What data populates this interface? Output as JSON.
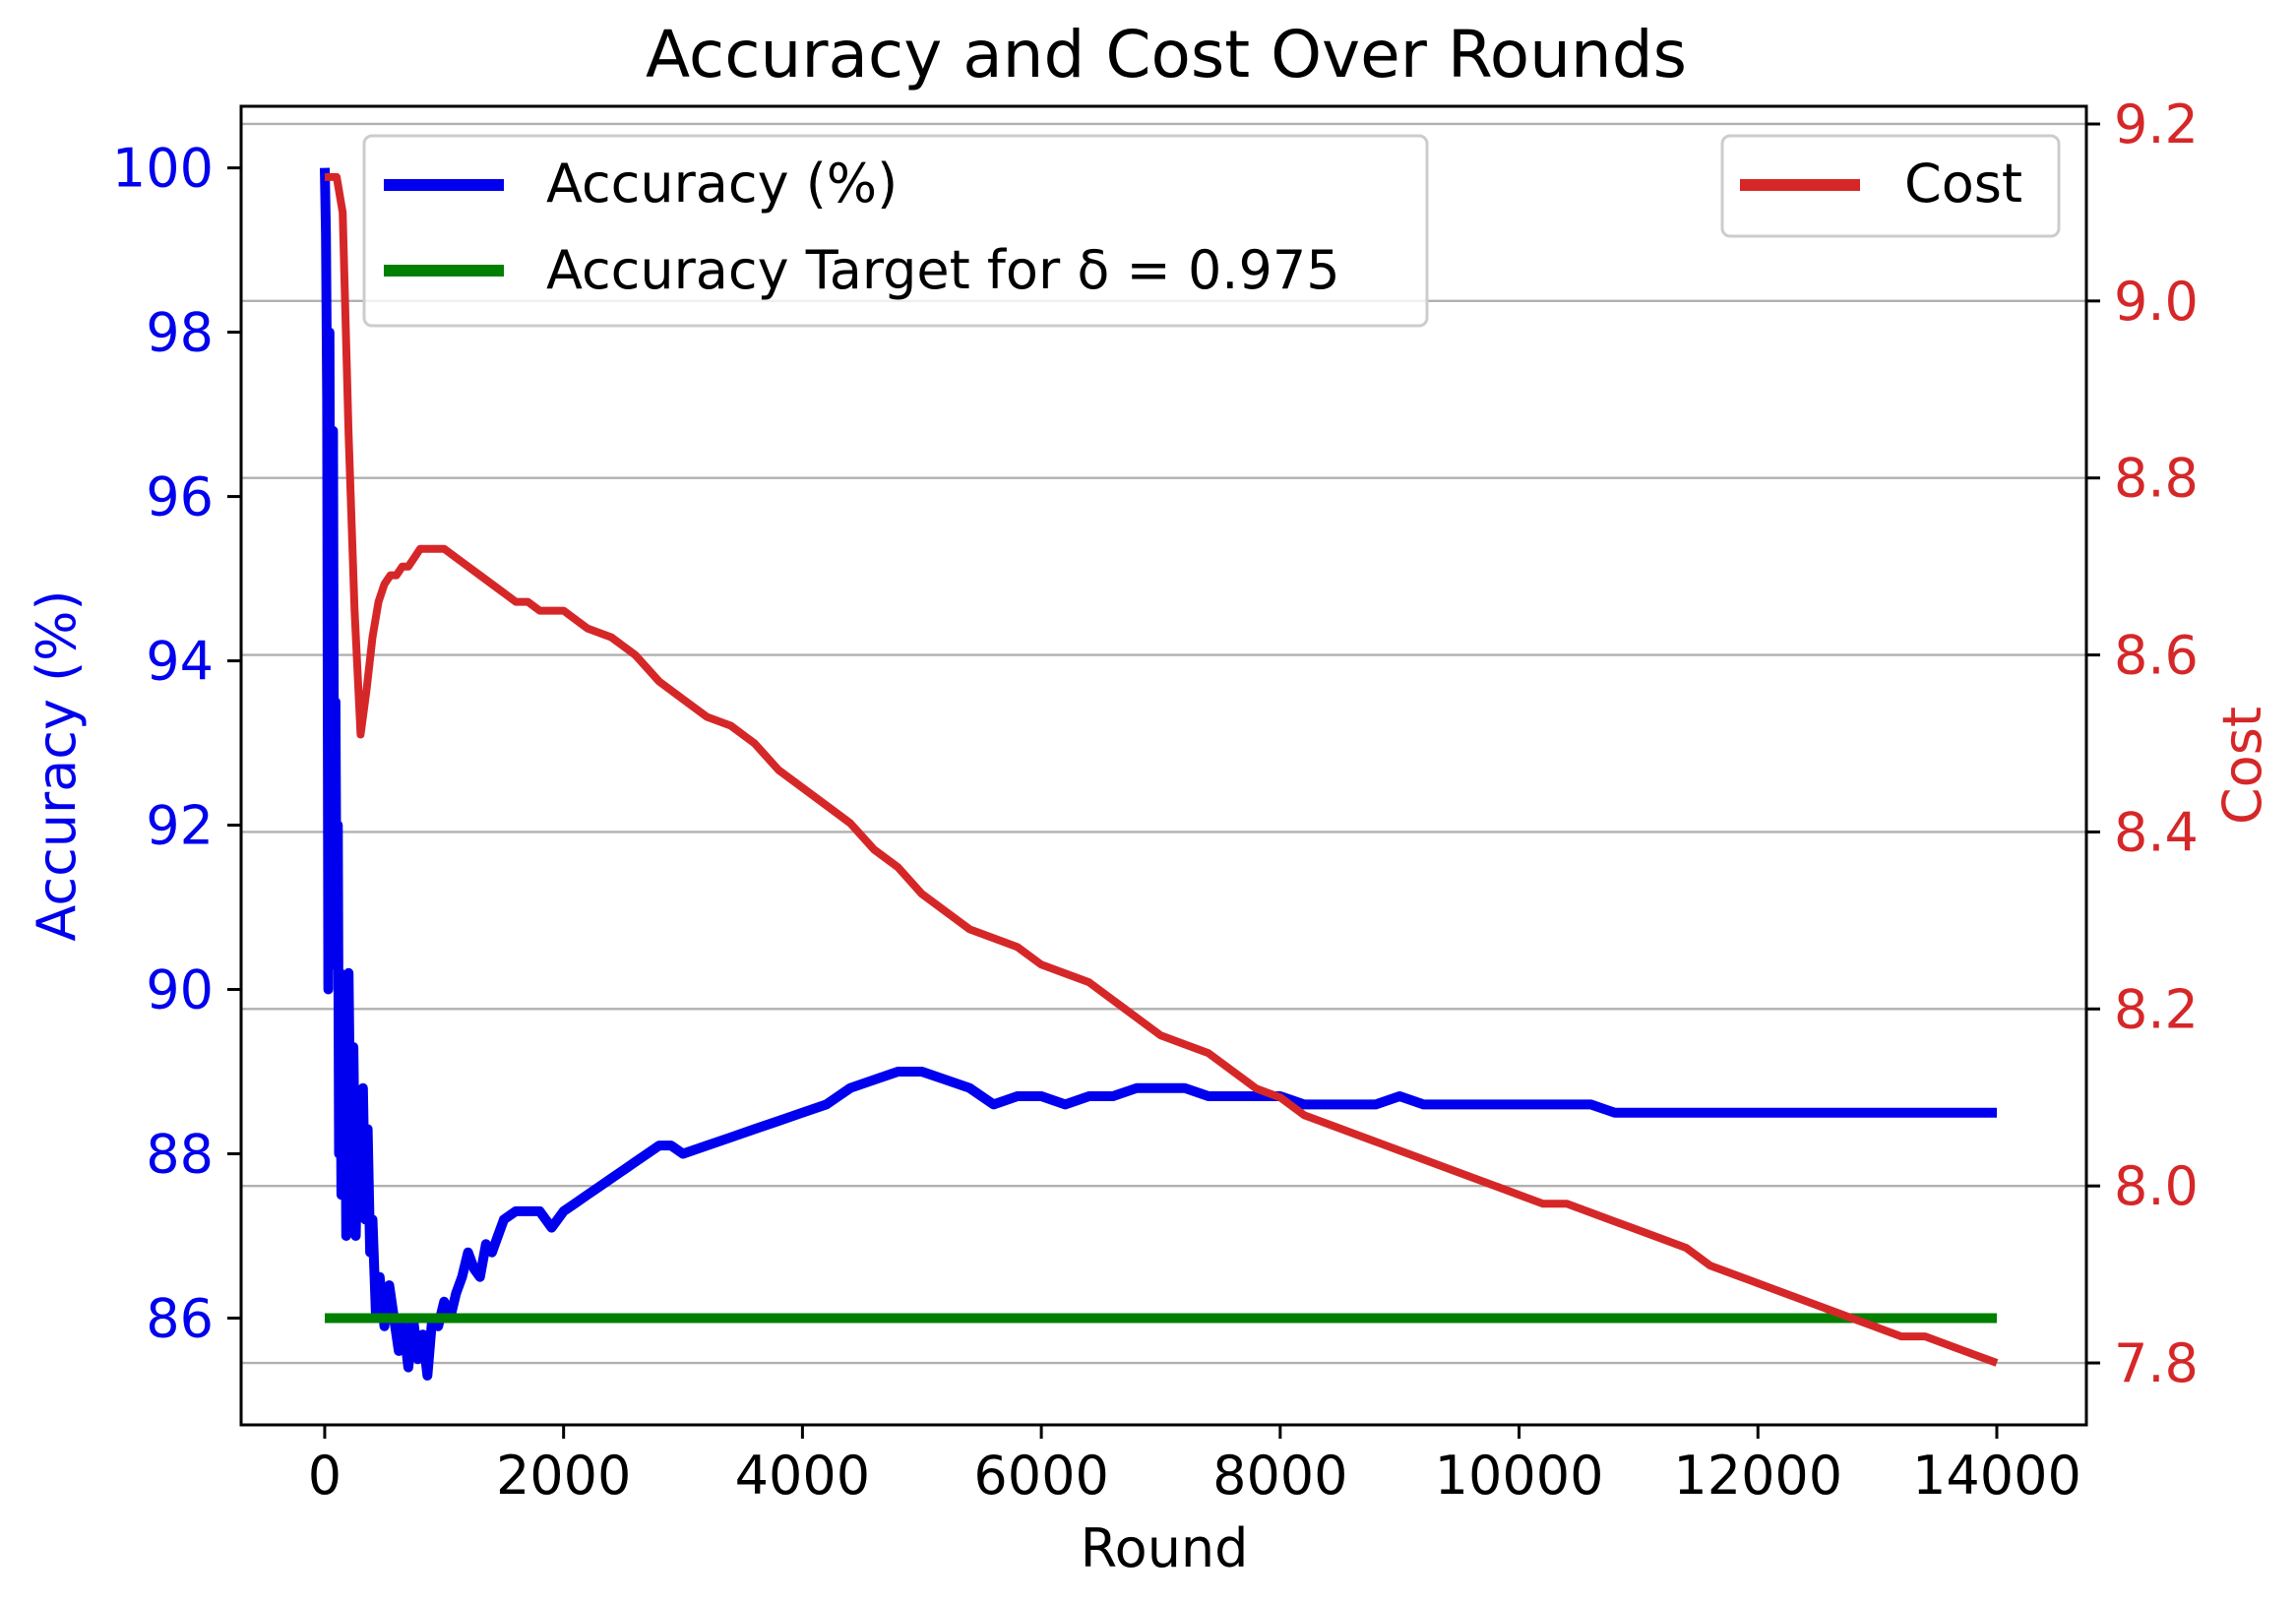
{
  "chart_data": {
    "type": "line",
    "title": "Accuracy and Cost Over Rounds",
    "xlabel": "Round",
    "ylabel_left": "Accuracy (%)",
    "ylabel_right": "Cost",
    "xlim": [
      -700,
      14750
    ],
    "ylim_left": [
      84.7,
      100.75
    ],
    "ylim_right": [
      7.73,
      9.22
    ],
    "xticks": [
      0,
      2000,
      4000,
      6000,
      8000,
      10000,
      12000,
      14000
    ],
    "xtick_labels": [
      "0",
      "2000",
      "4000",
      "6000",
      "8000",
      "10000",
      "12000",
      "14000"
    ],
    "yticks_left": [
      86,
      88,
      90,
      92,
      94,
      96,
      98,
      100
    ],
    "ytick_labels_left": [
      "86",
      "88",
      "90",
      "92",
      "94",
      "96",
      "98",
      "100"
    ],
    "yticks_right": [
      7.8,
      8.0,
      8.2,
      8.4,
      8.6,
      8.8,
      9.0,
      9.2
    ],
    "ytick_labels_right": [
      "7.8",
      "8.0",
      "8.2",
      "8.4",
      "8.6",
      "8.8",
      "9.0",
      "9.2"
    ],
    "grid": "horizontal lines at right-axis ticks",
    "legend_left_placement": "upper-left",
    "legend_right_placement": "upper-right",
    "series": [
      {
        "name": "Accuracy (%)",
        "axis": "left",
        "color": "#0000ee",
        "x": [
          0,
          10,
          20,
          30,
          40,
          50,
          60,
          70,
          80,
          90,
          100,
          110,
          120,
          130,
          140,
          150,
          160,
          170,
          180,
          190,
          200,
          220,
          240,
          260,
          280,
          300,
          320,
          340,
          360,
          380,
          400,
          430,
          460,
          500,
          540,
          580,
          620,
          660,
          700,
          740,
          780,
          820,
          860,
          900,
          950,
          1000,
          1050,
          1100,
          1150,
          1200,
          1250,
          1300,
          1350,
          1400,
          1450,
          1500,
          1600,
          1700,
          1800,
          1900,
          2000,
          2100,
          2200,
          2300,
          2400,
          2500,
          2600,
          2700,
          2800,
          2900,
          3000,
          3200,
          3400,
          3600,
          3800,
          4000,
          4200,
          4400,
          4600,
          4800,
          4900,
          5000,
          5200,
          5400,
          5600,
          5800,
          6000,
          6200,
          6400,
          6600,
          6800,
          7000,
          7200,
          7400,
          7600,
          7800,
          8000,
          8200,
          8400,
          8600,
          8800,
          9000,
          9200,
          9400,
          9600,
          9800,
          10000,
          10200,
          10400,
          10600,
          10800,
          11000,
          11200,
          11400,
          11600,
          11800,
          12000,
          12200,
          12400,
          12600,
          12800,
          13000,
          13200,
          13400,
          13600,
          13800,
          14000
        ],
        "y": [
          100.0,
          99.2,
          97.2,
          90.0,
          98.0,
          92.5,
          90.3,
          96.8,
          91.0,
          93.5,
          90.5,
          92.0,
          88.0,
          90.2,
          87.5,
          89.5,
          88.0,
          89.8,
          87.0,
          89.0,
          90.2,
          87.5,
          89.3,
          87.0,
          88.6,
          87.5,
          88.8,
          87.2,
          88.3,
          86.8,
          87.2,
          86.0,
          86.5,
          85.9,
          86.4,
          86.0,
          85.6,
          85.9,
          85.4,
          86.0,
          85.5,
          85.8,
          85.3,
          86.0,
          85.9,
          86.2,
          86.0,
          86.3,
          86.5,
          86.8,
          86.6,
          86.5,
          86.9,
          86.8,
          87.0,
          87.2,
          87.3,
          87.3,
          87.3,
          87.1,
          87.3,
          87.4,
          87.5,
          87.6,
          87.7,
          87.8,
          87.9,
          88.0,
          88.1,
          88.1,
          88.0,
          88.1,
          88.2,
          88.3,
          88.4,
          88.5,
          88.6,
          88.8,
          88.9,
          89.0,
          89.0,
          89.0,
          88.9,
          88.8,
          88.6,
          88.7,
          88.7,
          88.6,
          88.7,
          88.7,
          88.8,
          88.8,
          88.8,
          88.7,
          88.7,
          88.7,
          88.7,
          88.6,
          88.6,
          88.6,
          88.6,
          88.7,
          88.6,
          88.6,
          88.6,
          88.6,
          88.6,
          88.6,
          88.6,
          88.6,
          88.5,
          88.5,
          88.5,
          88.5,
          88.5,
          88.5,
          88.5,
          88.5,
          88.5,
          88.5,
          88.5,
          88.5,
          88.5,
          88.5,
          88.5,
          88.5,
          88.5
        ]
      },
      {
        "name": "Accuracy Target for δ = 0.975",
        "axis": "left",
        "color": "#007f00",
        "x": [
          0,
          14000
        ],
        "y": [
          86.0,
          86.0
        ]
      },
      {
        "name": "Cost",
        "axis": "right",
        "color": "#d62728",
        "x": [
          0,
          50,
          100,
          150,
          200,
          250,
          300,
          350,
          400,
          450,
          500,
          550,
          600,
          650,
          700,
          750,
          800,
          850,
          900,
          950,
          1000,
          1100,
          1200,
          1300,
          1400,
          1500,
          1600,
          1700,
          1800,
          1900,
          2000,
          2200,
          2400,
          2600,
          2800,
          3000,
          3200,
          3400,
          3600,
          3800,
          4000,
          4200,
          4400,
          4600,
          4800,
          5000,
          5200,
          5400,
          5600,
          5800,
          6000,
          6200,
          6400,
          6600,
          6800,
          7000,
          7200,
          7400,
          7600,
          7800,
          8000,
          8200,
          8400,
          8600,
          8800,
          9000,
          9200,
          9400,
          9600,
          9800,
          10000,
          10200,
          10400,
          10600,
          10800,
          11000,
          11200,
          11400,
          11600,
          11800,
          12000,
          12200,
          12400,
          12600,
          12800,
          13000,
          13200,
          13400,
          13600,
          13800,
          14000
        ],
        "y": [
          9.14,
          9.14,
          9.14,
          9.1,
          8.85,
          8.65,
          8.51,
          8.56,
          8.62,
          8.66,
          8.68,
          8.69,
          8.69,
          8.7,
          8.7,
          8.71,
          8.72,
          8.72,
          8.72,
          8.72,
          8.72,
          8.71,
          8.7,
          8.69,
          8.68,
          8.67,
          8.66,
          8.66,
          8.65,
          8.65,
          8.65,
          8.63,
          8.62,
          8.6,
          8.57,
          8.55,
          8.53,
          8.52,
          8.5,
          8.47,
          8.45,
          8.43,
          8.41,
          8.38,
          8.36,
          8.33,
          8.31,
          8.29,
          8.28,
          8.27,
          8.25,
          8.24,
          8.23,
          8.21,
          8.19,
          8.17,
          8.16,
          8.15,
          8.13,
          8.11,
          8.1,
          8.08,
          8.07,
          8.06,
          8.05,
          8.04,
          8.03,
          8.02,
          8.01,
          8.0,
          7.99,
          7.98,
          7.98,
          7.97,
          7.96,
          7.95,
          7.94,
          7.93,
          7.91,
          7.9,
          7.89,
          7.88,
          7.87,
          7.86,
          7.85,
          7.84,
          7.83,
          7.83,
          7.82,
          7.81,
          7.8
        ]
      }
    ]
  }
}
